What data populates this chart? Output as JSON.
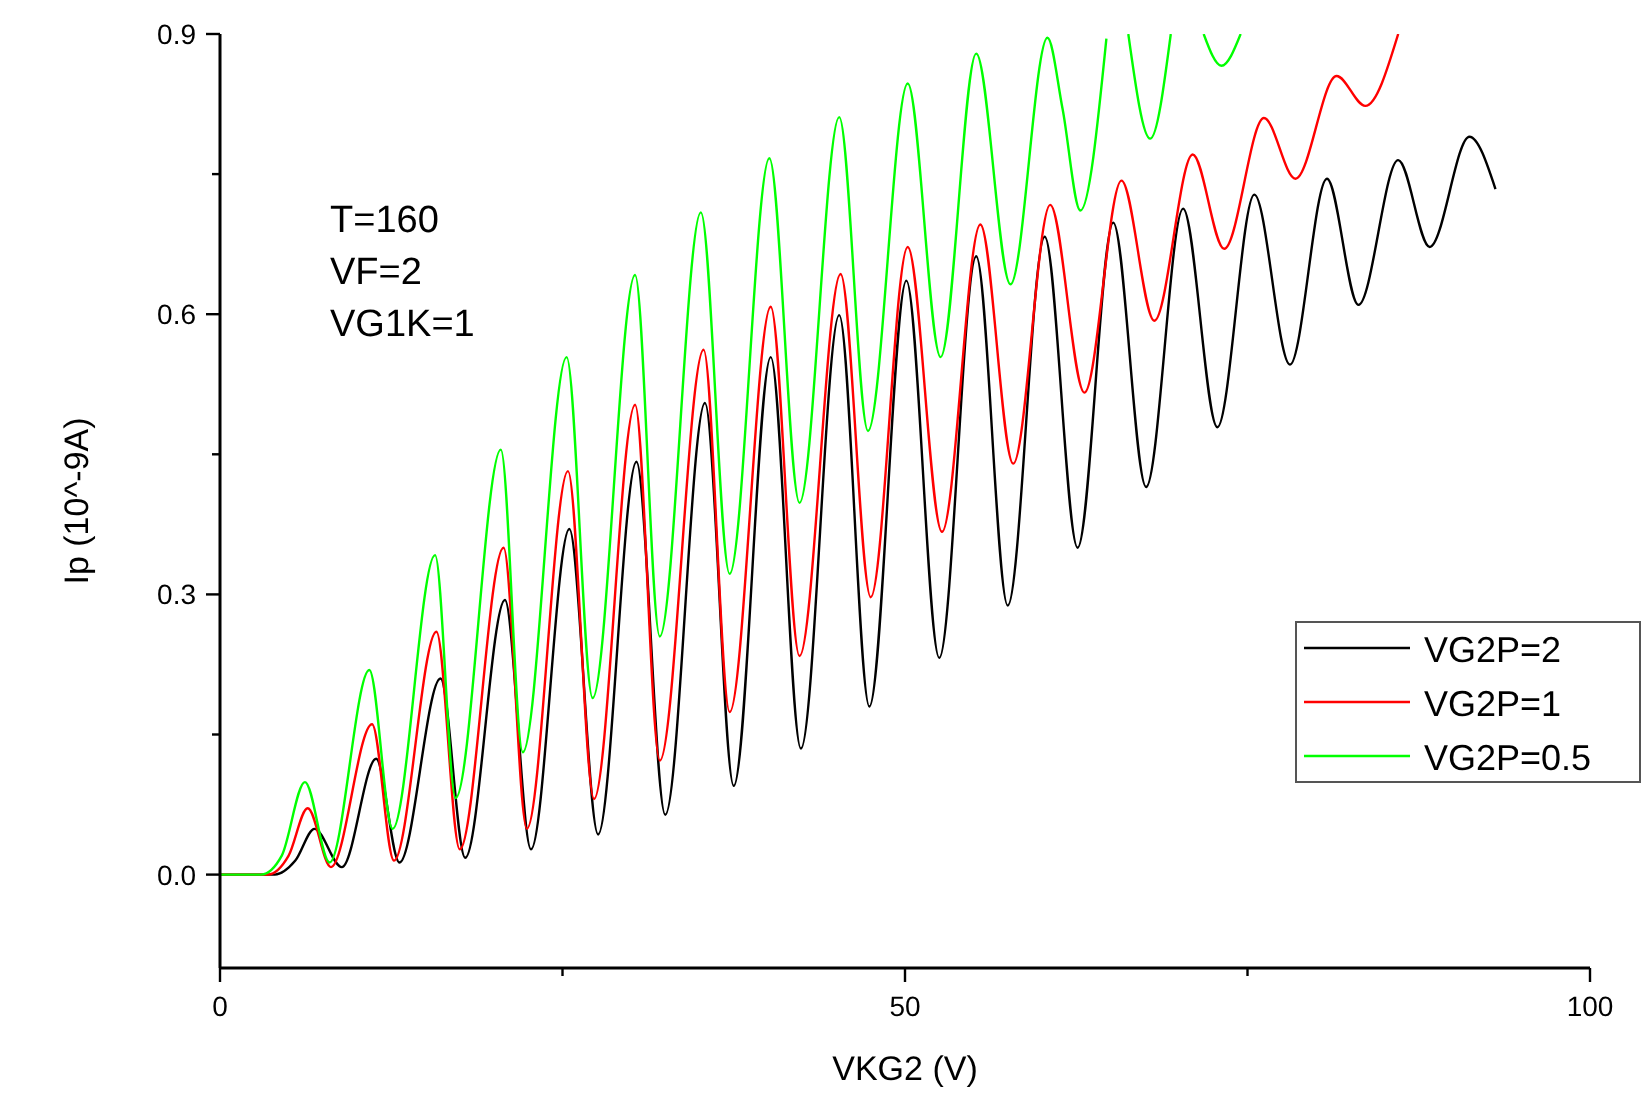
{
  "chart_data": {
    "type": "line",
    "xlabel": "VKG2 (V)",
    "ylabel": "Ip (10^-9A)",
    "xlim": [
      0,
      100
    ],
    "ylim": [
      -0.1,
      0.9
    ],
    "xticks": [
      0,
      {
        "value": 25,
        "label": null
      },
      50,
      {
        "value": 75,
        "label": null
      },
      100
    ],
    "yticks": [
      {
        "value": 0,
        "label": "0.0"
      },
      {
        "value": 0.15,
        "label": null
      },
      0.3,
      {
        "value": 0.45,
        "label": null
      },
      0.6,
      {
        "value": 0.75,
        "label": null
      },
      0.9
    ],
    "legend": "bottom right",
    "annotations": [
      "T=160",
      "VF=2",
      "VG1K=1"
    ],
    "series": [
      {
        "name": "VG2P=2",
        "color": "#000000",
        "x": [
          0,
          4,
          5.5,
          6.9,
          8.9,
          11.4,
          13.1,
          16.1,
          17.9,
          20.8,
          22.7,
          25.5,
          27.6,
          30.4,
          32.5,
          35.4,
          37.5,
          40.2,
          42.4,
          45.2,
          47.4,
          50.1,
          52.5,
          55.2,
          57.5,
          60.2,
          62.6,
          65.2,
          67.6,
          70.3,
          72.8,
          75.5,
          78.1,
          80.8,
          83.1,
          86.0,
          88.3,
          91.2,
          93.1
        ],
        "values": [
          0,
          0,
          0.015,
          0.049,
          0.008,
          0.124,
          0.013,
          0.21,
          0.018,
          0.294,
          0.027,
          0.37,
          0.043,
          0.442,
          0.064,
          0.505,
          0.095,
          0.554,
          0.135,
          0.599,
          0.18,
          0.636,
          0.232,
          0.662,
          0.288,
          0.683,
          0.35,
          0.698,
          0.415,
          0.713,
          0.479,
          0.728,
          0.546,
          0.745,
          0.61,
          0.765,
          0.672,
          0.79,
          0.734
        ]
      },
      {
        "name": "VG2P=1",
        "color": "#ff0000",
        "x": [
          0,
          3.5,
          5,
          6.4,
          8.1,
          11.1,
          12.7,
          15.8,
          17.5,
          20.7,
          22.4,
          25.4,
          27.3,
          30.3,
          32.1,
          35.3,
          37.2,
          40.2,
          42.3,
          45.3,
          47.5,
          50.2,
          52.7,
          55.5,
          57.9,
          60.6,
          63.1,
          65.8,
          68.2,
          71.0,
          73.3,
          76.2,
          78.5,
          81.5,
          83.6,
          86.0
        ],
        "values": [
          0,
          0,
          0.02,
          0.071,
          0.008,
          0.161,
          0.015,
          0.26,
          0.027,
          0.35,
          0.049,
          0.432,
          0.081,
          0.503,
          0.122,
          0.562,
          0.174,
          0.608,
          0.234,
          0.643,
          0.297,
          0.672,
          0.367,
          0.696,
          0.44,
          0.717,
          0.516,
          0.743,
          0.593,
          0.771,
          0.67,
          0.81,
          0.745,
          0.855,
          0.823,
          0.9
        ]
      },
      {
        "name": "VG2P=0.5",
        "color": "#00ff00",
        "x": [
          0,
          3,
          4.5,
          6.2,
          8.0,
          10.9,
          12.6,
          15.7,
          17.2,
          20.5,
          22.1,
          25.3,
          27.2,
          30.3,
          32.1,
          35.1,
          37.2,
          40.1,
          42.3,
          45.2,
          47.3,
          50.2,
          52.6,
          55.2,
          57.7,
          60.4,
          61.5,
          62.8,
          64.7,
          65.5,
          66.3,
          67.9,
          69.4,
          70.5,
          71.8,
          73.1,
          74.5
        ],
        "values": [
          0,
          0,
          0.02,
          0.099,
          0.013,
          0.219,
          0.049,
          0.342,
          0.082,
          0.455,
          0.131,
          0.554,
          0.189,
          0.642,
          0.255,
          0.709,
          0.322,
          0.767,
          0.398,
          0.811,
          0.475,
          0.847,
          0.554,
          0.879,
          0.632,
          0.896,
          0.82,
          0.711,
          0.895,
          null,
          0.9,
          0.788,
          0.9,
          null,
          0.9,
          0.866,
          0.9
        ]
      }
    ]
  }
}
